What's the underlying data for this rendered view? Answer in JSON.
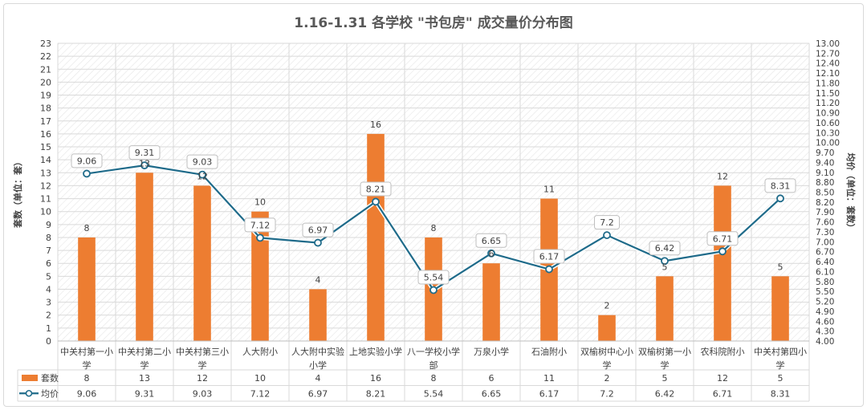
{
  "chart_data": {
    "type": "bar+line",
    "title": "1.16-1.31 各学校 \"书包房\" 成交量价分布图",
    "categories": [
      [
        "中关村第一小",
        "学"
      ],
      [
        "中关村第二小",
        "学"
      ],
      [
        "中关村第三小",
        "学"
      ],
      [
        "人大附小"
      ],
      [
        "人大附中实验",
        "小学"
      ],
      [
        "上地实验小学"
      ],
      [
        "八一学校小学",
        "部"
      ],
      [
        "万泉小学"
      ],
      [
        "石油附小"
      ],
      [
        "双榆树中心小",
        "学"
      ],
      [
        "双榆树第一小",
        "学"
      ],
      [
        "农科院附小"
      ],
      [
        "中关村第四小",
        "学"
      ]
    ],
    "series": [
      {
        "name": "套数",
        "type": "bar",
        "axis": "left",
        "color": "#ed7d31",
        "values": [
          8,
          13,
          12,
          10,
          4,
          16,
          8,
          6,
          11,
          2,
          5,
          12,
          5
        ]
      },
      {
        "name": "均价",
        "type": "line",
        "axis": "right",
        "color": "#1f6b8a",
        "values": [
          9.06,
          9.31,
          9.03,
          7.12,
          6.97,
          8.21,
          5.54,
          6.65,
          6.17,
          7.2,
          6.42,
          6.71,
          8.31
        ]
      }
    ],
    "y_left": {
      "label": "套数（单位：套）",
      "min": 0,
      "max": 23,
      "step": 1
    },
    "y_right": {
      "label": "均价（单位：套数）",
      "min": 4.0,
      "max": 13.0,
      "step": 0.3,
      "decimals": 2
    },
    "grid": true,
    "legend": "data-table"
  }
}
